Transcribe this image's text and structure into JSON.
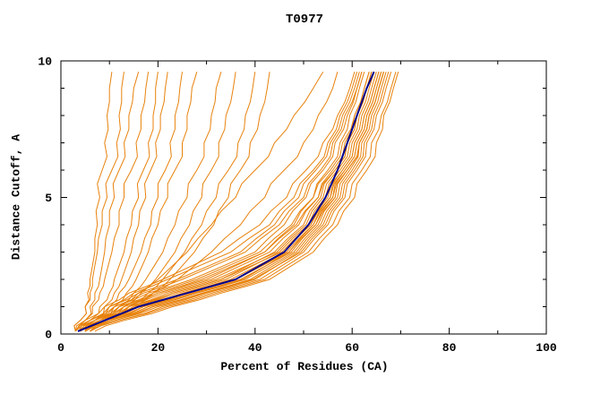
{
  "chart_data": {
    "type": "line",
    "title": "T0977",
    "xlabel": "Percent of Residues (CA)",
    "ylabel": "Distance Cutoff, A",
    "xlim": [
      0,
      100
    ],
    "ylim": [
      0,
      10
    ],
    "x_major_ticks": [
      0,
      20,
      40,
      60,
      80,
      100
    ],
    "x_minor_step": 10,
    "y_major_ticks": [
      0,
      5,
      10
    ],
    "y_minor_step": 1,
    "grid": false,
    "legend": "none",
    "colors": {
      "model_lines": "#e8820c",
      "highlight_line": "#00008b",
      "axis": "#000000",
      "background": "#ffffff",
      "text": "#000000"
    },
    "y_levels": [
      0.1,
      0.5,
      1,
      1.5,
      2,
      3,
      4,
      5,
      6,
      7,
      8,
      9,
      9.6
    ],
    "model_series_x": [
      [
        3,
        4,
        5,
        5.5,
        6,
        7,
        7.5,
        8,
        8.5,
        9,
        9.5,
        10,
        10.5
      ],
      [
        3,
        4,
        5,
        6,
        6.5,
        7.5,
        8.5,
        9.5,
        10.5,
        11.5,
        12,
        12.5,
        13
      ],
      [
        4,
        5,
        6,
        7,
        8,
        9,
        10,
        11,
        12,
        13,
        14,
        15,
        16
      ],
      [
        4,
        5,
        6.5,
        8,
        9,
        10.5,
        12,
        13,
        14.5,
        15.5,
        16.5,
        17.5,
        18
      ],
      [
        4,
        6,
        8,
        10,
        11,
        13,
        14.5,
        16,
        17,
        18,
        19,
        19.5,
        20
      ],
      [
        5,
        7,
        9,
        11,
        12.5,
        14.5,
        16,
        17.5,
        18.5,
        19.5,
        20.5,
        21.5,
        22
      ],
      [
        5,
        7,
        10,
        12,
        14,
        16.5,
        18.5,
        20,
        21.5,
        22.5,
        23.5,
        24.5,
        25
      ],
      [
        5,
        8,
        11,
        13.5,
        15.5,
        18,
        20,
        22,
        23.5,
        25,
        26,
        27,
        28
      ],
      [
        5,
        8,
        12,
        15,
        17.5,
        21,
        23.5,
        26,
        28,
        29.5,
        31,
        32,
        33
      ],
      [
        5,
        9,
        13,
        16.5,
        19.5,
        23.5,
        26.5,
        29,
        31,
        32.5,
        34,
        35.5,
        36
      ],
      [
        6,
        10,
        14,
        18,
        21,
        25.5,
        29,
        32,
        34.5,
        36.5,
        38,
        39.5,
        40
      ],
      [
        6,
        10,
        15,
        19,
        22.5,
        27.5,
        31.5,
        34.5,
        37,
        39,
        41,
        42.5,
        43
      ],
      [
        5,
        8,
        12,
        16,
        20,
        26,
        31,
        36,
        40,
        44,
        48,
        52,
        54
      ],
      [
        5,
        9,
        14,
        19,
        24,
        31,
        37,
        42,
        46,
        50,
        53,
        56,
        57
      ],
      [
        3,
        7,
        12,
        20,
        30,
        42,
        48,
        52,
        55,
        57.5,
        59.5,
        61.5,
        62.5
      ],
      [
        4,
        8,
        14,
        23,
        33,
        44,
        50,
        53.5,
        56.5,
        59,
        61,
        63,
        64
      ],
      [
        4,
        9,
        16,
        26,
        36,
        47,
        52,
        55.5,
        58,
        60.5,
        62.5,
        64.5,
        65.5
      ],
      [
        5,
        10,
        18,
        28,
        38,
        48,
        53,
        56.5,
        59,
        61.5,
        63.5,
        65.5,
        66.5
      ],
      [
        5,
        11,
        20,
        30,
        40,
        49,
        54,
        57.5,
        60,
        62,
        64,
        66,
        67
      ],
      [
        3,
        6,
        11,
        18,
        27,
        40,
        46,
        50.5,
        54,
        56.5,
        59,
        61,
        62
      ],
      [
        4,
        7,
        13,
        21,
        31,
        43,
        49,
        53,
        56,
        58.5,
        60.5,
        62.5,
        63.5
      ],
      [
        4,
        8,
        15,
        24,
        34,
        45,
        51,
        54.5,
        57.5,
        60,
        62,
        64,
        65
      ],
      [
        5,
        9,
        17,
        27,
        37,
        47.5,
        52.5,
        56,
        58.5,
        61,
        63,
        65,
        66
      ],
      [
        5,
        10,
        19,
        29,
        39,
        48.5,
        53.5,
        57,
        59.5,
        61.5,
        63.5,
        65.5,
        66.5
      ],
      [
        3,
        6,
        10,
        16,
        24,
        37,
        44,
        49,
        52.5,
        55.5,
        58,
        60.5,
        61.5
      ],
      [
        4,
        7,
        12,
        19,
        28,
        41,
        47.5,
        52,
        55.5,
        58,
        60.5,
        62.5,
        63.5
      ],
      [
        4,
        8,
        14,
        22,
        32,
        44.5,
        50.5,
        54,
        57,
        59.5,
        61.5,
        63.5,
        64.5
      ],
      [
        5,
        9,
        16,
        25,
        35,
        46,
        51.5,
        55,
        58,
        60.5,
        62.5,
        64.5,
        65.5
      ],
      [
        5,
        10,
        18,
        27.5,
        37.5,
        47,
        52.5,
        56.5,
        59,
        61.5,
        63.5,
        65.5,
        66.5
      ],
      [
        6,
        11,
        19,
        29.5,
        39.5,
        49.5,
        54.5,
        58,
        60.5,
        62.5,
        64.5,
        66.5,
        67.5
      ],
      [
        6,
        12,
        21,
        31,
        41,
        50,
        55,
        58.5,
        61,
        63,
        65,
        67,
        68
      ],
      [
        6,
        12,
        22,
        32,
        42,
        51,
        56,
        59.5,
        62,
        64,
        66,
        68,
        69
      ],
      [
        7,
        13,
        23,
        33,
        43,
        52,
        57,
        60.5,
        63,
        65,
        66.5,
        68.5,
        69.5
      ],
      [
        3,
        5,
        9,
        14,
        21,
        33,
        41,
        46.5,
        50.5,
        54,
        57,
        59.5,
        60.5
      ],
      [
        4,
        6,
        10,
        15,
        22,
        35,
        43,
        48,
        52,
        55,
        57.5,
        60,
        61
      ],
      [
        4,
        7,
        11,
        17,
        25,
        38,
        45,
        50,
        53.5,
        56,
        58.5,
        61,
        62
      ],
      [
        5,
        8,
        13,
        20,
        29,
        42,
        48.5,
        53,
        56.5,
        59,
        61,
        63,
        64
      ],
      [
        5,
        9,
        15,
        23,
        33,
        45.5,
        51.5,
        55.5,
        58.5,
        61,
        63,
        65,
        66
      ],
      [
        6,
        10,
        17,
        26,
        36,
        46.5,
        52,
        56,
        59,
        61.5,
        63.5,
        65.5,
        66.5
      ]
    ],
    "highlight_series_x": [
      3.5,
      9,
      16,
      26,
      36,
      46,
      51,
      54.5,
      57,
      59,
      61,
      63,
      64.5
    ]
  }
}
